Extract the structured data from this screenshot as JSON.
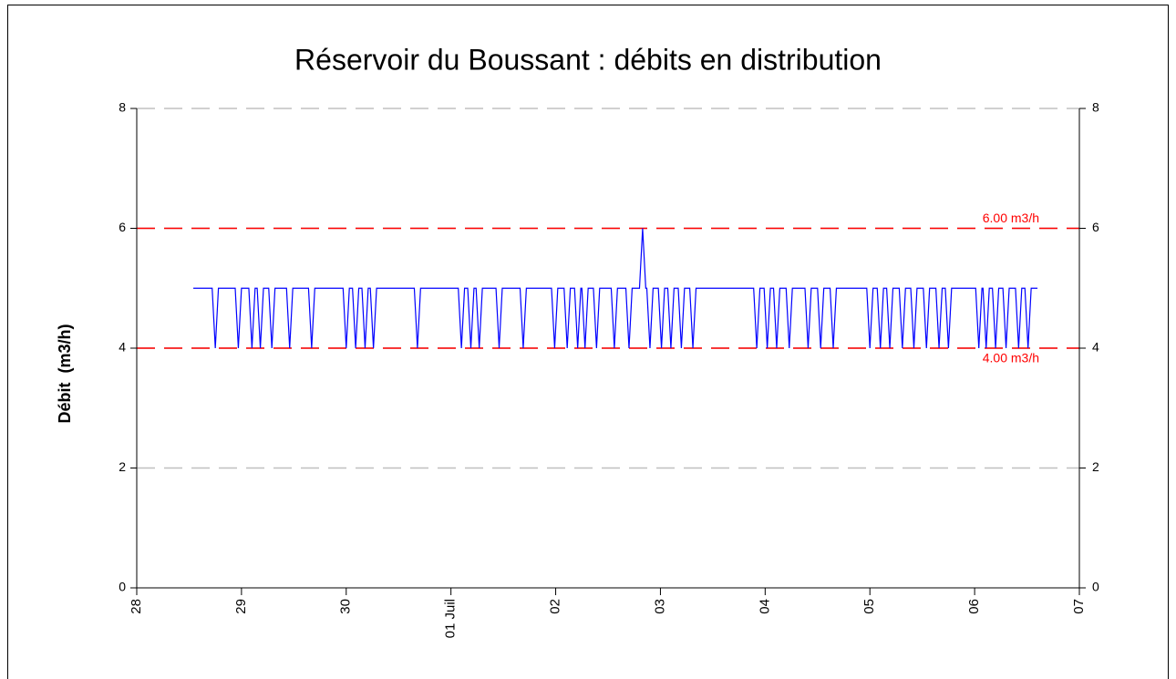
{
  "chart_data": {
    "type": "line",
    "title": "Réservoir du Boussant : débits en distribution",
    "y_label": "Débit  (m3/h)",
    "xlim": [
      0,
      9
    ],
    "xticks": [
      {
        "value": 0,
        "label": "28"
      },
      {
        "value": 1,
        "label": "29"
      },
      {
        "value": 2,
        "label": "30"
      },
      {
        "value": 3,
        "label": "01 Juil"
      },
      {
        "value": 4,
        "label": "02"
      },
      {
        "value": 5,
        "label": "03"
      },
      {
        "value": 6,
        "label": "04"
      },
      {
        "value": 7,
        "label": "05"
      },
      {
        "value": 8,
        "label": "06"
      },
      {
        "value": 9,
        "label": "07"
      }
    ],
    "ylim": [
      0,
      8
    ],
    "yticks": [
      0,
      2,
      4,
      6,
      8
    ],
    "grid": true,
    "reference_lines": [
      {
        "value": 6,
        "label": "6.00 m3/h",
        "color": "#ff0000"
      },
      {
        "value": 4,
        "label": "4.00 m3/h",
        "color": "#ff0000"
      }
    ],
    "series": [
      {
        "color": "#0000ff",
        "x": [
          0.54,
          0.72,
          0.75,
          0.78,
          0.94,
          0.97,
          1.0,
          1.07,
          1.1,
          1.13,
          1.15,
          1.18,
          1.21,
          1.26,
          1.29,
          1.32,
          1.43,
          1.46,
          1.49,
          1.64,
          1.67,
          1.7,
          1.97,
          2.0,
          2.03,
          2.06,
          2.09,
          2.12,
          2.15,
          2.18,
          2.21,
          2.23,
          2.26,
          2.29,
          2.65,
          2.68,
          2.71,
          3.07,
          3.1,
          3.13,
          3.16,
          3.19,
          3.22,
          3.24,
          3.27,
          3.3,
          3.43,
          3.46,
          3.49,
          3.66,
          3.69,
          3.72,
          3.96,
          3.99,
          4.02,
          4.08,
          4.11,
          4.14,
          4.18,
          4.21,
          4.24,
          4.25,
          4.28,
          4.31,
          4.36,
          4.39,
          4.42,
          4.53,
          4.56,
          4.59,
          4.67,
          4.7,
          4.73,
          4.8,
          4.83,
          4.86,
          4.87,
          4.9,
          4.93,
          4.98,
          5.01,
          5.04,
          5.07,
          5.1,
          5.13,
          5.17,
          5.2,
          5.23,
          5.28,
          5.31,
          5.34,
          5.89,
          5.92,
          5.95,
          5.99,
          6.02,
          6.05,
          6.08,
          6.11,
          6.14,
          6.2,
          6.23,
          6.26,
          6.38,
          6.41,
          6.44,
          6.5,
          6.53,
          6.56,
          6.62,
          6.65,
          6.68,
          6.97,
          7.0,
          7.03,
          7.07,
          7.1,
          7.13,
          7.16,
          7.19,
          7.22,
          7.28,
          7.31,
          7.34,
          7.39,
          7.42,
          7.45,
          7.51,
          7.54,
          7.57,
          7.63,
          7.66,
          7.69,
          7.72,
          7.75,
          7.78,
          8.01,
          8.04,
          8.07,
          8.08,
          8.11,
          8.14,
          8.17,
          8.2,
          8.23,
          8.27,
          8.3,
          8.33,
          8.39,
          8.42,
          8.45,
          8.48,
          8.51,
          8.54,
          8.6
        ],
        "values": [
          5,
          5,
          4,
          5,
          5,
          4,
          5,
          5,
          4,
          5,
          5,
          4,
          5,
          5,
          4,
          5,
          5,
          4,
          5,
          5,
          4,
          5,
          5,
          4,
          5,
          5,
          4,
          5,
          5,
          4,
          5,
          5,
          4,
          5,
          5,
          4,
          5,
          5,
          4,
          5,
          5,
          4,
          5,
          5,
          4,
          5,
          5,
          4,
          5,
          5,
          4,
          5,
          5,
          4,
          5,
          5,
          4,
          5,
          5,
          4,
          5,
          5,
          4,
          5,
          5,
          4,
          5,
          5,
          4,
          5,
          5,
          4,
          5,
          5,
          6,
          5,
          5,
          4,
          5,
          5,
          4,
          5,
          5,
          4,
          5,
          5,
          4,
          5,
          5,
          4,
          5,
          5,
          4,
          5,
          5,
          4,
          5,
          5,
          4,
          5,
          5,
          4,
          5,
          5,
          4,
          5,
          5,
          4,
          5,
          5,
          4,
          5,
          5,
          4,
          5,
          5,
          4,
          5,
          5,
          4,
          5,
          5,
          4,
          5,
          5,
          4,
          5,
          5,
          4,
          5,
          5,
          4,
          5,
          5,
          4,
          5,
          5,
          4,
          5,
          5,
          4,
          5,
          5,
          4,
          5,
          5,
          4,
          5,
          5,
          4,
          5,
          5,
          4,
          5,
          5
        ]
      }
    ]
  }
}
